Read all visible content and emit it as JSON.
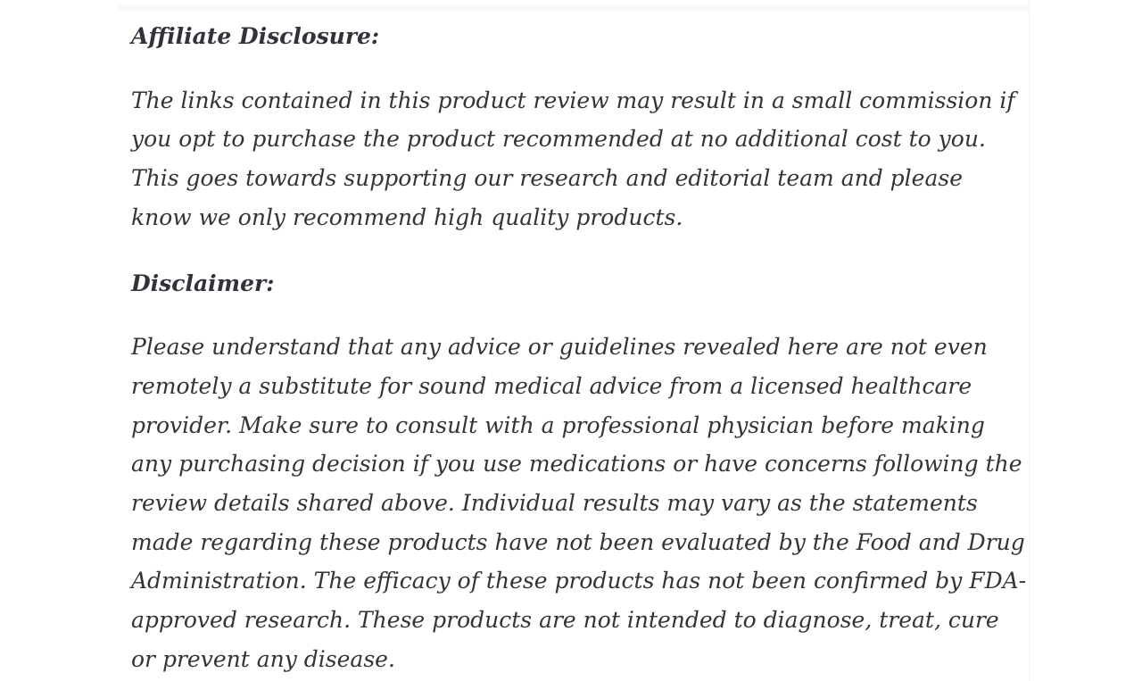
{
  "page": {
    "background_color": "#ffffff",
    "text_color": "#333338",
    "heading_color": "#32323a",
    "divider_color": "#f1f1f1",
    "top_band_color": "#f9f9f9"
  },
  "content": {
    "sections": [
      {
        "heading": "Affiliate Disclosure:",
        "paragraphs": [
          "The links contained in this product review may result in a small commission if you opt to purchase the product recommended at no additional cost to you. This goes towards supporting our research and editorial team and please know we only recommend high quality products."
        ]
      },
      {
        "heading": "Disclaimer:",
        "paragraphs": [
          "Please understand that any advice or guidelines revealed here are not even remotely a substitute for sound medical advice from a licensed healthcare provider. Make sure to consult with a professional physician before making any purchasing decision if you use medications or have concerns following the review details shared above. Individual results may vary as the statements made regarding these products have not been evaluated by the Food and Drug Administration. The efficacy of these products has not been confirmed by FDA-approved research. These products are not intended to diagnose, treat, cure or prevent any disease."
        ]
      }
    ]
  }
}
